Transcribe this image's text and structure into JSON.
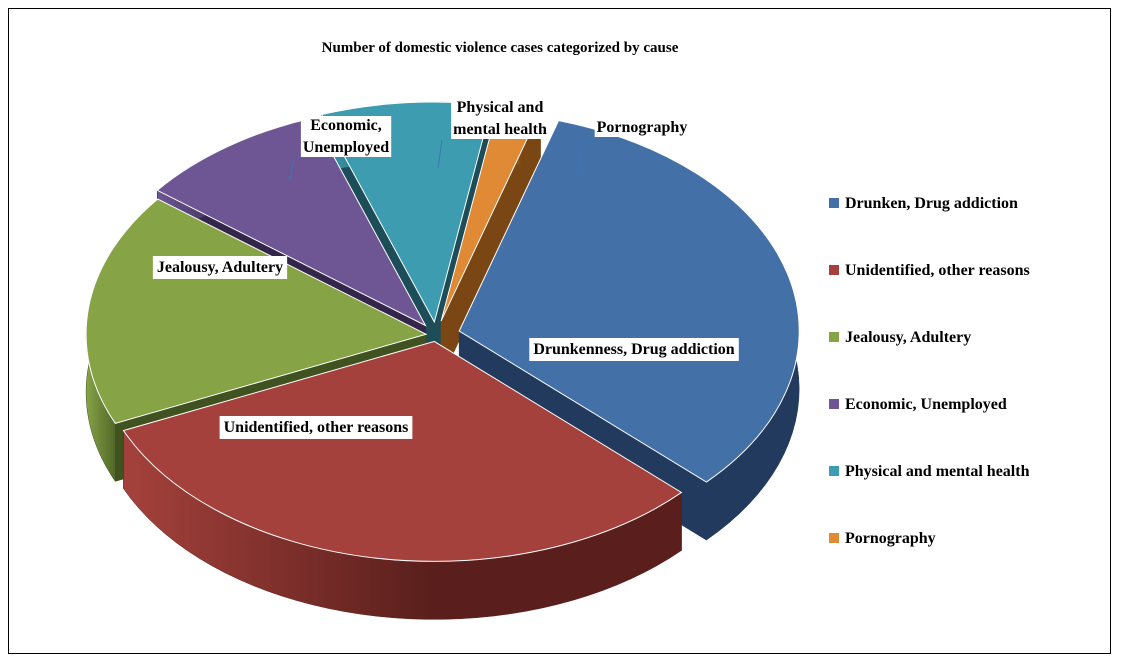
{
  "chart_data": {
    "type": "pie",
    "title": "Number of domestic violence cases categorized by cause",
    "values": [
      32,
      31,
      17,
      9,
      8,
      2
    ],
    "slices": [
      {
        "legend": "Drunken, Drug addiction",
        "label": "Drunkenness, Drug addiction",
        "color": "#4470a8",
        "side": "#223a5e"
      },
      {
        "legend": "Unidentified, other reasons",
        "label": "Unidentified, other reasons",
        "color": "#a5413c",
        "side": "#5a1f1c"
      },
      {
        "legend": "Jealousy, Adultery",
        "label": "Jealousy, Adultery",
        "color": "#86a446",
        "side": "#3f5220"
      },
      {
        "legend": "Economic, Unemployed",
        "label": "Economic,\nUnemployed",
        "color": "#6d5693",
        "side": "#33264a"
      },
      {
        "legend": "Physical and mental health",
        "label": "Physical and\nmental health",
        "color": "#3d9cb0",
        "side": "#1c4d58"
      },
      {
        "legend": "Pornography",
        "label": "Pornography",
        "color": "#e08a36",
        "side": "#7a4613"
      }
    ],
    "legend_position": "right",
    "exploded": true,
    "three_d": true
  }
}
